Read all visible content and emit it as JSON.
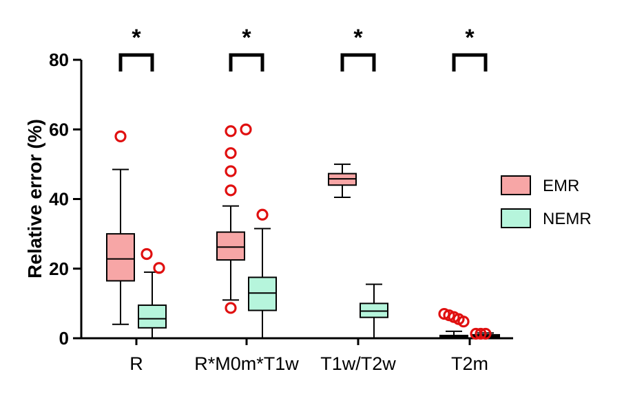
{
  "chart_data": {
    "type": "boxplot",
    "ylabel": "Relative error (%)",
    "ylim": [
      0,
      80
    ],
    "yticks": [
      0,
      20,
      40,
      60,
      80
    ],
    "grid": false,
    "legend_position": "right",
    "categories": [
      "R",
      "R*M0m*T1w",
      "T1w/T2w",
      "T2m"
    ],
    "significance": [
      "*",
      "*",
      "*",
      "*"
    ],
    "series": [
      {
        "name": "EMR",
        "color": "#f7a6a6",
        "boxes": [
          {
            "min": 4,
            "q1": 16.5,
            "median": 22.8,
            "q3": 30,
            "max": 48.5,
            "outliers": [
              58
            ]
          },
          {
            "min": 11,
            "q1": 22.5,
            "median": 26.2,
            "q3": 30.5,
            "max": 38,
            "outliers": [
              59.5,
              60,
              53.2,
              48,
              42.5,
              8.7
            ]
          },
          {
            "min": 40.5,
            "q1": 44,
            "median": 45.8,
            "q3": 47.3,
            "max": 50,
            "outliers": []
          },
          {
            "min": 0,
            "q1": 0.2,
            "median": 0.5,
            "q3": 0.8,
            "max": 2,
            "outliers": [
              7,
              6.6,
              6.1,
              5.5,
              4.8
            ]
          }
        ]
      },
      {
        "name": "NEMR",
        "color": "#b6f5dc",
        "boxes": [
          {
            "min": 0,
            "q1": 3,
            "median": 5.6,
            "q3": 9.5,
            "max": 19,
            "outliers": [
              24.2,
              20.2
            ]
          },
          {
            "min": 0,
            "q1": 8,
            "median": 13,
            "q3": 17.5,
            "max": 31.5,
            "outliers": [
              35.5
            ]
          },
          {
            "min": 0,
            "q1": 6,
            "median": 7.8,
            "q3": 10,
            "max": 15.5,
            "outliers": []
          },
          {
            "min": 0,
            "q1": 0.3,
            "median": 0.6,
            "q3": 1,
            "max": 1.5,
            "outliers": [
              1.3,
              1.3,
              1.3
            ]
          }
        ]
      }
    ]
  }
}
